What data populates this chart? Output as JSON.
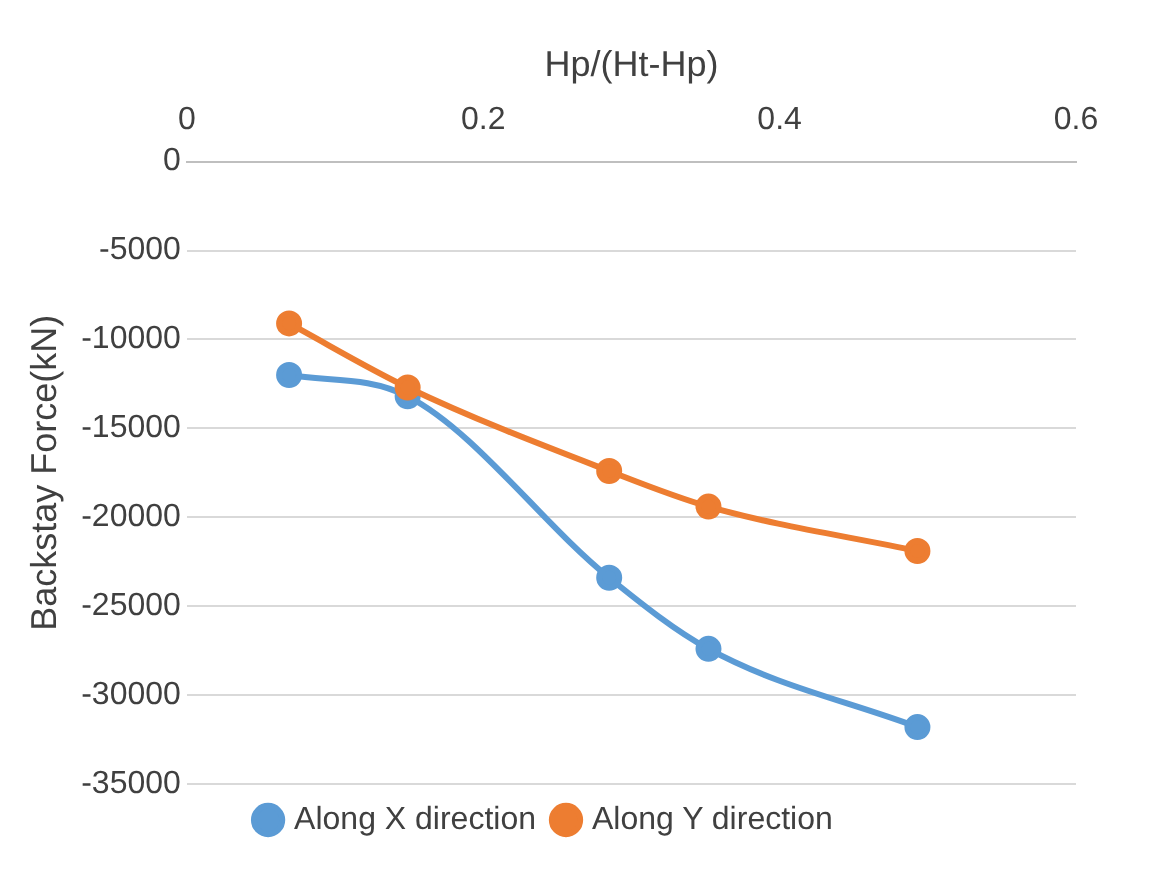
{
  "chart_data": {
    "type": "line",
    "xlabel": "Hp/(Ht-Hp)",
    "ylabel": "Backstay Force(kN)",
    "xlim": [
      0,
      0.6
    ],
    "xticks": [
      0,
      0.2,
      0.4,
      0.6
    ],
    "ylim": [
      -35000,
      0
    ],
    "yticks": [
      -35000,
      -30000,
      -25000,
      -20000,
      -15000,
      -10000,
      -5000,
      0
    ],
    "grid": "y",
    "legend": "bottom",
    "marker": "circle",
    "line_style": "solid",
    "series": [
      {
        "name": "Along X direction",
        "color": "#5b9bd5",
        "x": [
          0.069,
          0.149,
          0.285,
          0.352,
          0.493
        ],
        "values": [
          -12000,
          -13200,
          -23400,
          -27400,
          -31800
        ]
      },
      {
        "name": "Along Y direction",
        "color": "#ed7d31",
        "x": [
          0.069,
          0.149,
          0.285,
          0.352,
          0.493
        ],
        "values": [
          -9100,
          -12700,
          -17400,
          -19400,
          -21900
        ]
      }
    ]
  }
}
